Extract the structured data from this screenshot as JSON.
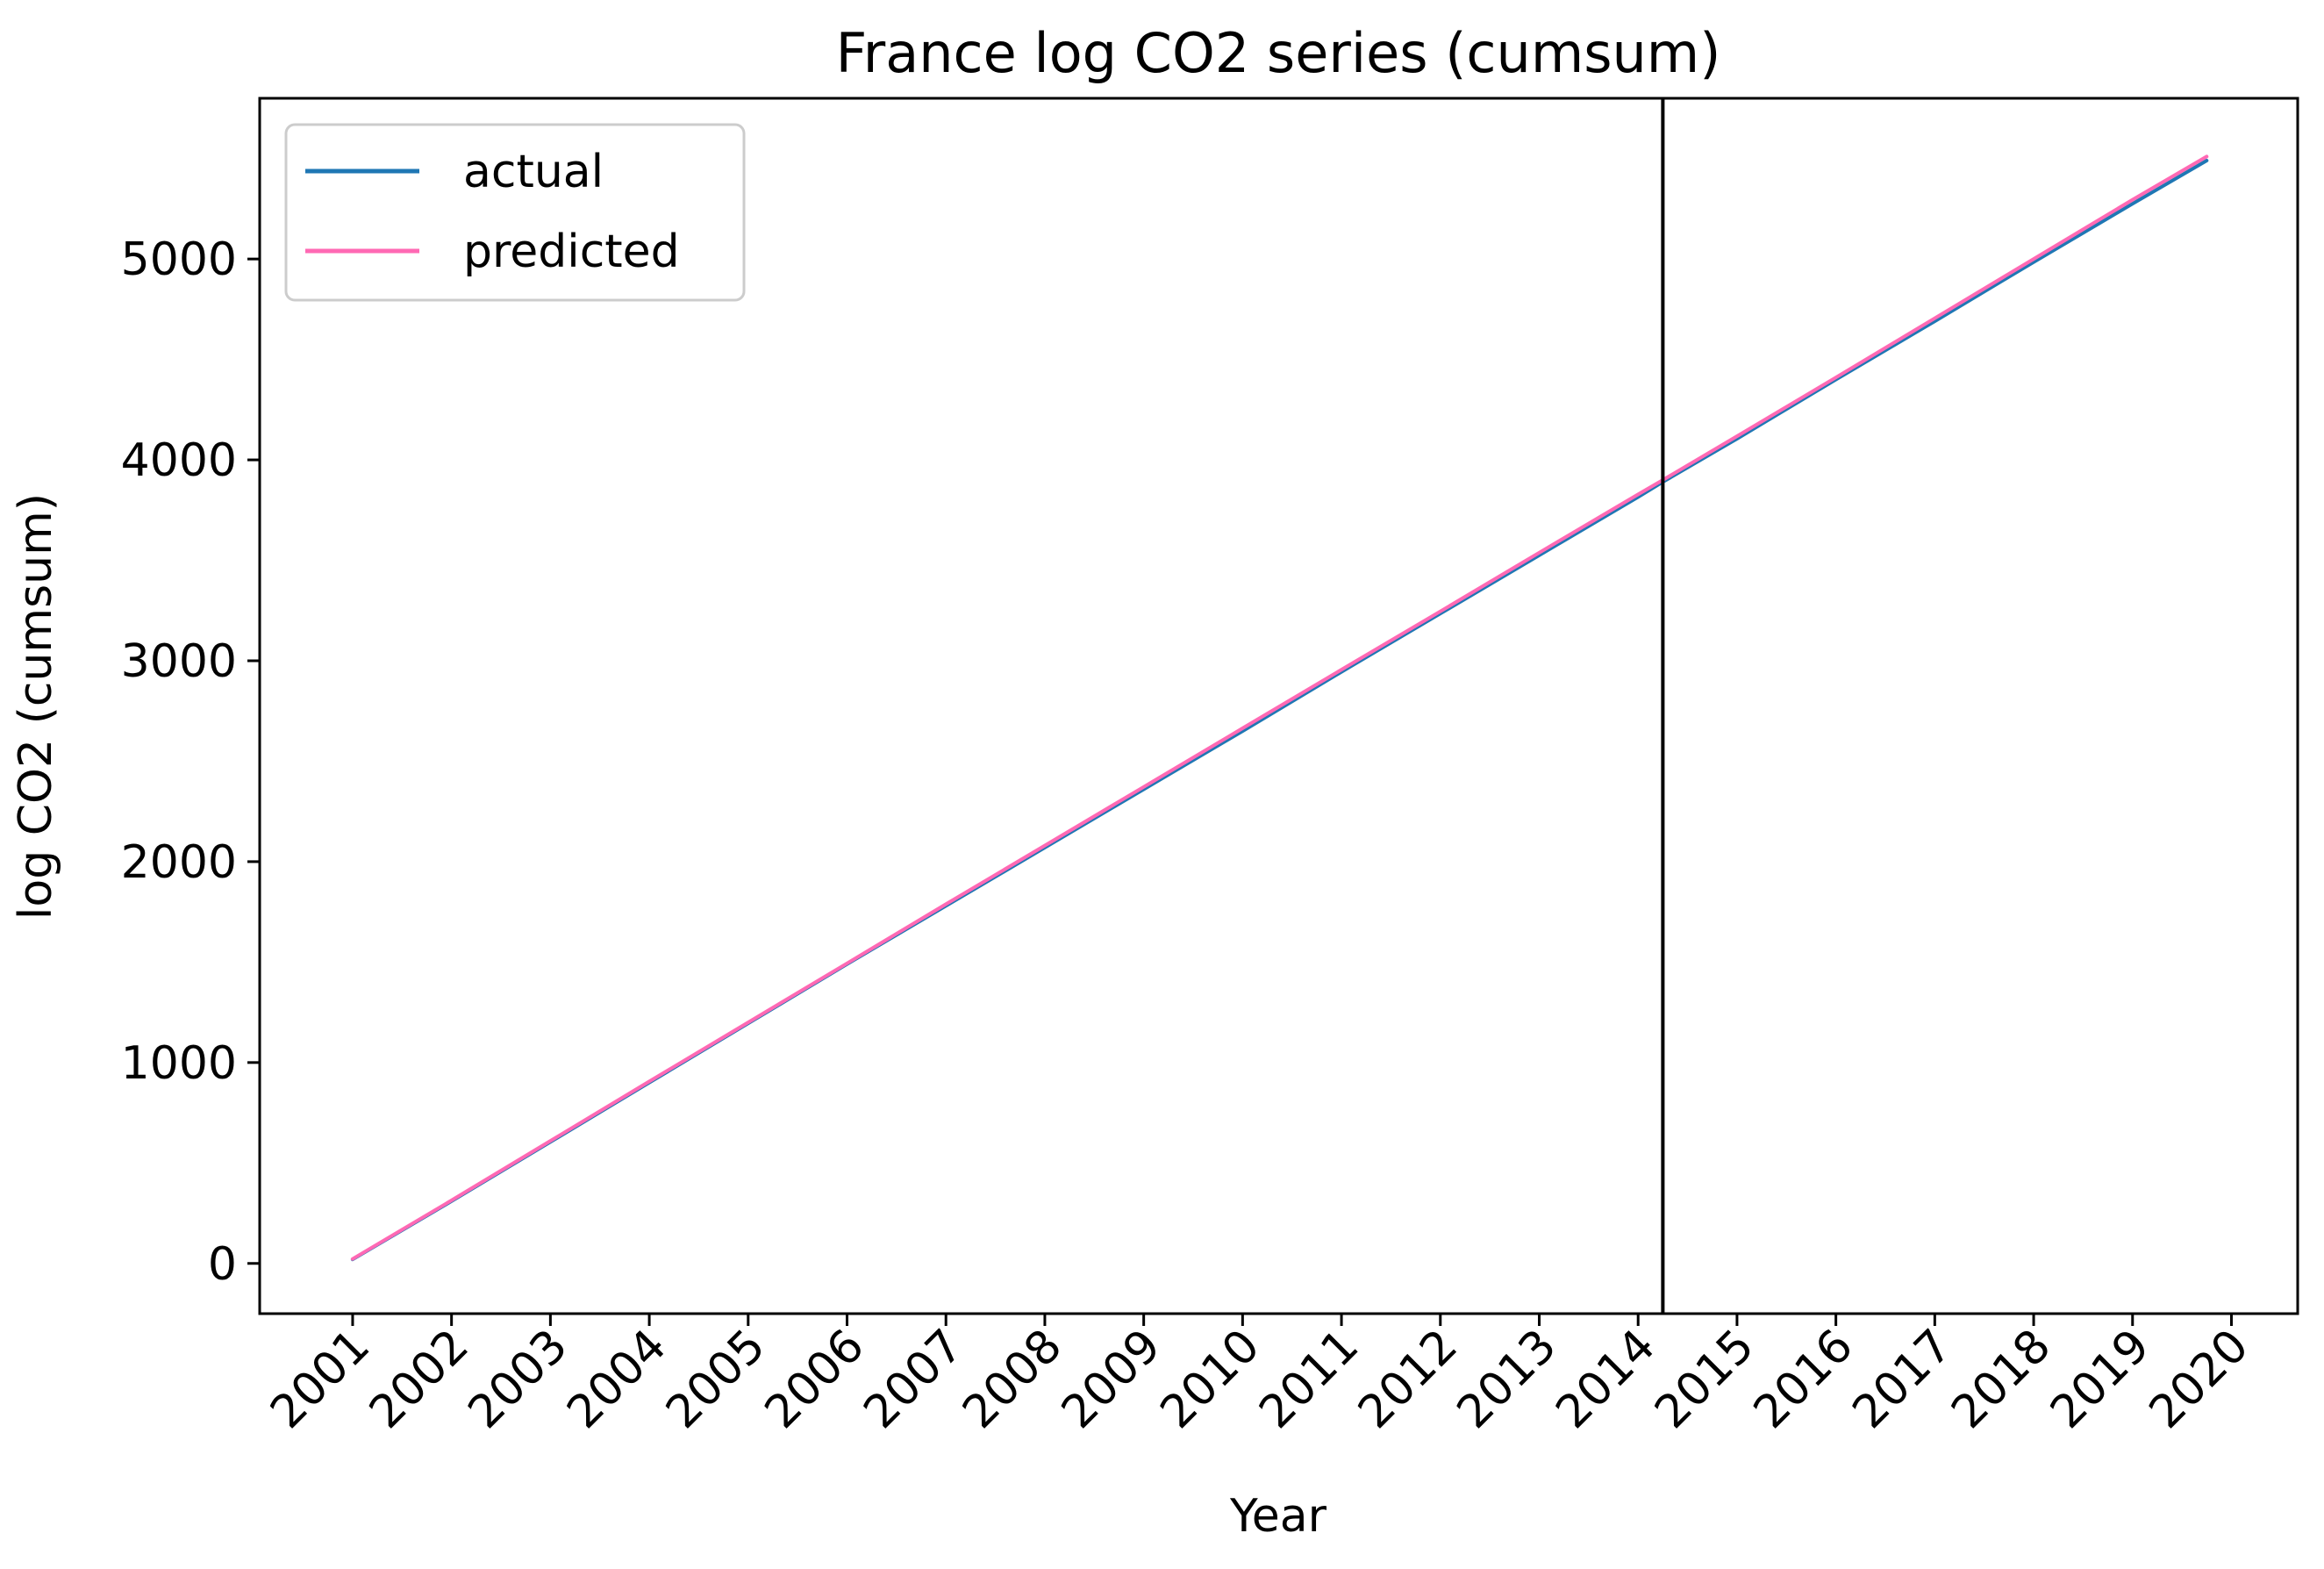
{
  "chart_data": {
    "type": "line",
    "title": "France log CO2 series (cumsum)",
    "xlabel": "Year",
    "ylabel": "log CO2 (cumsum)",
    "xlim": [
      2000.06,
      2020.67
    ],
    "ylim": [
      -250,
      5800
    ],
    "x_ticks": [
      2001,
      2002,
      2003,
      2004,
      2005,
      2006,
      2007,
      2008,
      2009,
      2010,
      2011,
      2012,
      2013,
      2014,
      2015,
      2016,
      2017,
      2018,
      2019,
      2020
    ],
    "y_ticks": [
      0,
      1000,
      2000,
      3000,
      4000,
      5000
    ],
    "x_tick_rotation": 45,
    "legend_position": "top-left",
    "vline": {
      "x": 2014.25,
      "color": "#000000"
    },
    "grid": false,
    "series": [
      {
        "name": "actual",
        "color": "#1f77b4",
        "x": [
          2001,
          2002,
          2003,
          2004,
          2005,
          2006,
          2007,
          2008,
          2009,
          2010,
          2011,
          2012,
          2013,
          2014,
          2014.25,
          2015,
          2016,
          2017,
          2018,
          2019,
          2019.75
        ],
        "y": [
          20,
          310,
          605,
          900,
          1195,
          1490,
          1780,
          2070,
          2360,
          2650,
          2945,
          3235,
          3525,
          3815,
          3890,
          4105,
          4400,
          4690,
          4985,
          5275,
          5490
        ]
      },
      {
        "name": "predicted",
        "color": "#ff69b4",
        "x": [
          2001,
          2002,
          2003,
          2004,
          2005,
          2006,
          2007,
          2008,
          2009,
          2010,
          2011,
          2012,
          2013,
          2014,
          2014.25,
          2015,
          2016,
          2017,
          2018,
          2019,
          2019.75
        ],
        "y": [
          22,
          314,
          610,
          906,
          1200,
          1494,
          1788,
          2080,
          2372,
          2664,
          2956,
          3246,
          3538,
          3828,
          3900,
          4118,
          4410,
          4705,
          5000,
          5295,
          5510
        ]
      }
    ]
  }
}
